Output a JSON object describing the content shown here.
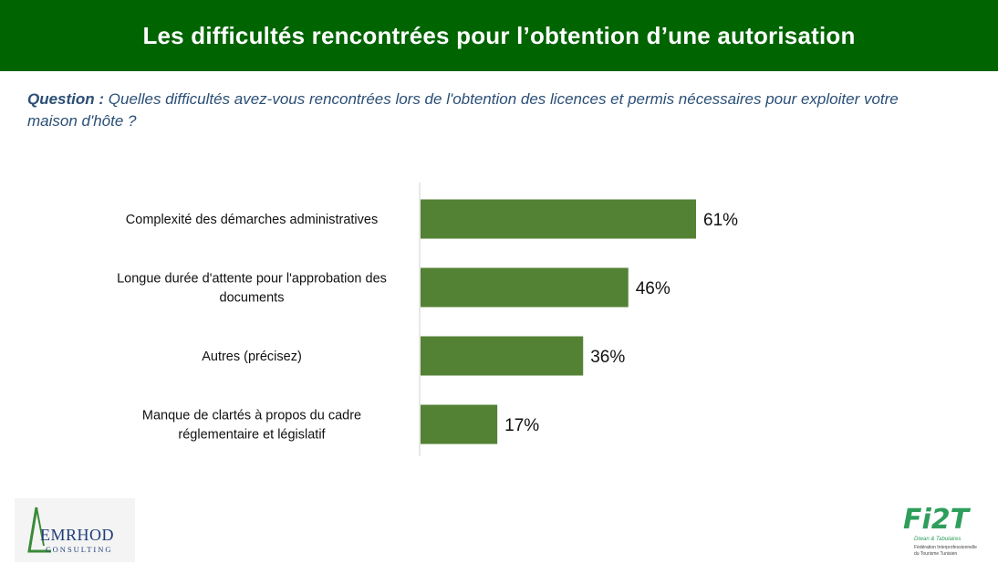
{
  "header": {
    "title": "Les difficultés rencontrées pour l’obtention d’une autorisation"
  },
  "question": {
    "label": "Question :",
    "text": "Quelles difficultés avez-vous rencontrées lors de l'obtention des licences et permis nécessaires pour exploiter votre maison d'hôte ?"
  },
  "colors": {
    "header_bg": "#006400",
    "bar": "#548235",
    "question_text": "#2b4f76"
  },
  "chart_data": {
    "type": "bar",
    "orientation": "horizontal",
    "categories": [
      [
        "Complexité des démarches administratives"
      ],
      [
        "Longue durée d'attente pour l'approbation des",
        "documents"
      ],
      [
        "Autres (précisez)"
      ],
      [
        "Manque de clartés à propos du cadre",
        "réglementaire et législatif"
      ]
    ],
    "values": [
      61,
      46,
      36,
      17
    ],
    "value_labels": [
      "61%",
      "46%",
      "36%",
      "17%"
    ],
    "xlim": [
      0,
      100
    ],
    "grid": false,
    "legend": "none"
  },
  "logos": {
    "left": {
      "name": "EMRHOD",
      "sub": "CONSULTING"
    },
    "right": {
      "name": "Fi2T",
      "tagline": "Diwan & Tabulaires",
      "sub1": "Fédération Interprofessionnelle",
      "sub2": "du Tourisme Tunisien"
    }
  }
}
